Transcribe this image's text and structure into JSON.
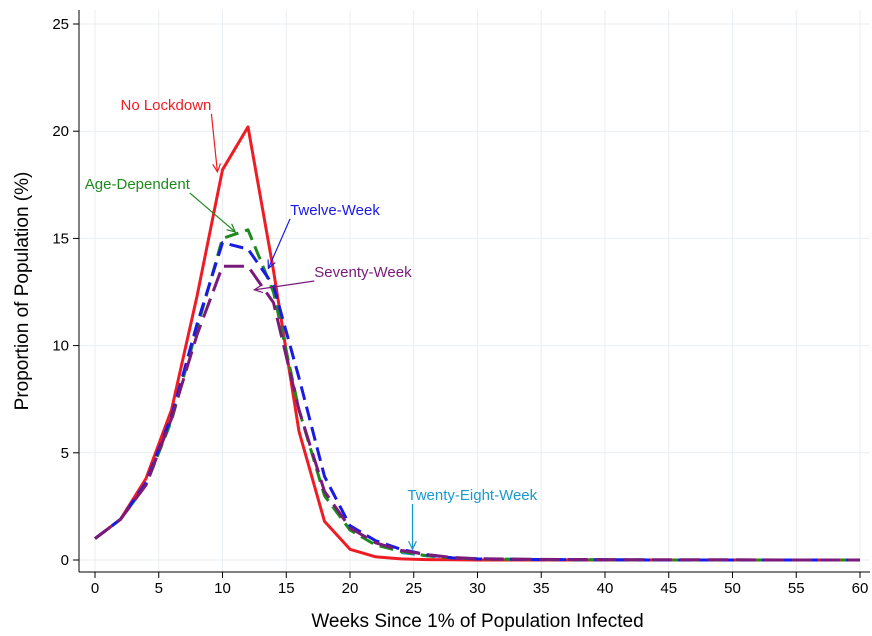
{
  "chart_data": {
    "type": "line",
    "xlabel": "Weeks Since 1% of Population Infected",
    "ylabel": "Proportion of Population (%)",
    "xlim": [
      0,
      60
    ],
    "ylim": [
      0,
      25
    ],
    "xticks": [
      0,
      5,
      10,
      15,
      20,
      25,
      30,
      35,
      40,
      45,
      50,
      55,
      60
    ],
    "yticks": [
      0,
      5,
      10,
      15,
      20,
      25
    ],
    "grid": true,
    "series": [
      {
        "name": "No Lockdown",
        "color": "#ee1c25",
        "dash": "solid",
        "x": [
          0,
          2,
          4,
          6,
          8,
          10,
          12,
          14,
          16,
          18,
          20,
          22,
          24,
          26,
          28,
          30,
          35,
          40,
          45,
          50,
          55,
          60
        ],
        "y": [
          1.0,
          1.9,
          3.8,
          7.0,
          12.3,
          18.2,
          20.2,
          13.5,
          6.0,
          1.8,
          0.5,
          0.15,
          0.05,
          0.02,
          0.01,
          0.0,
          0.0,
          0.0,
          0.0,
          0.0,
          0.0,
          0.0
        ]
      },
      {
        "name": "Twelve-Week",
        "color": "#1a1ae6",
        "dash": "dashed",
        "x": [
          0,
          2,
          4,
          6,
          8,
          10,
          12,
          14,
          16,
          18,
          20,
          22,
          24,
          26,
          28,
          30,
          35,
          40,
          45,
          50,
          55,
          60
        ],
        "y": [
          1.0,
          1.9,
          3.6,
          6.7,
          11.0,
          14.8,
          14.5,
          12.8,
          8.5,
          3.9,
          1.6,
          0.9,
          0.5,
          0.25,
          0.1,
          0.05,
          0.02,
          0.01,
          0.0,
          0.0,
          0.0,
          0.0
        ]
      },
      {
        "name": "Age-Dependent",
        "color": "#1e8a1e",
        "dash": "dashed",
        "x": [
          0,
          2,
          4,
          6,
          8,
          10,
          12,
          14,
          16,
          18,
          20,
          22,
          24,
          26,
          28,
          30,
          35,
          40,
          45,
          50,
          55,
          60
        ],
        "y": [
          1.0,
          1.9,
          3.5,
          6.5,
          10.8,
          15.0,
          15.4,
          12.5,
          7.0,
          3.0,
          1.4,
          0.7,
          0.4,
          0.2,
          0.1,
          0.05,
          0.02,
          0.01,
          0.0,
          0.0,
          0.0,
          0.0
        ]
      },
      {
        "name": "Seventy-Week",
        "color": "#7a1a7a",
        "dash": "longdash",
        "x": [
          0,
          2,
          4,
          6,
          8,
          10,
          12,
          14,
          16,
          18,
          20,
          22,
          24,
          26,
          28,
          30,
          35,
          40,
          45,
          50,
          55,
          60
        ],
        "y": [
          1.0,
          1.9,
          3.5,
          6.6,
          10.5,
          13.7,
          13.7,
          12.0,
          7.0,
          3.2,
          1.5,
          0.8,
          0.45,
          0.25,
          0.12,
          0.06,
          0.03,
          0.02,
          0.01,
          0.01,
          0.0,
          0.0
        ]
      },
      {
        "name": "Twenty-Eight-Week",
        "color": "#1a99cc",
        "dash": "dashed",
        "x": [
          24,
          26,
          28,
          30,
          35,
          40,
          45,
          50,
          55,
          60
        ],
        "y": [
          0.35,
          0.2,
          0.1,
          0.05,
          0.02,
          0.01,
          0.0,
          0.0,
          0.0,
          0.0
        ]
      }
    ],
    "annotations": [
      {
        "text": "No Lockdown",
        "color": "#ee1c25",
        "text_at": [
          2.0,
          21.0
        ],
        "arrow_to": [
          9.6,
          18.1
        ]
      },
      {
        "text": "Age-Dependent",
        "color": "#1e8a1e",
        "text_at": [
          -0.8,
          17.3
        ],
        "arrow_to": [
          11.0,
          15.3
        ]
      },
      {
        "text": "Twelve-Week",
        "color": "#1a1ae6",
        "text_at": [
          15.3,
          16.1
        ],
        "arrow_to": [
          13.6,
          13.6
        ]
      },
      {
        "text": "Seventy-Week",
        "color": "#7a1a7a",
        "text_at": [
          17.2,
          13.2
        ],
        "arrow_to": [
          12.5,
          12.6
        ]
      },
      {
        "text": "Twenty-Eight-Week",
        "color": "#1a99cc",
        "text_at": [
          24.5,
          2.8
        ],
        "arrow_to": [
          24.9,
          0.5
        ]
      }
    ]
  }
}
